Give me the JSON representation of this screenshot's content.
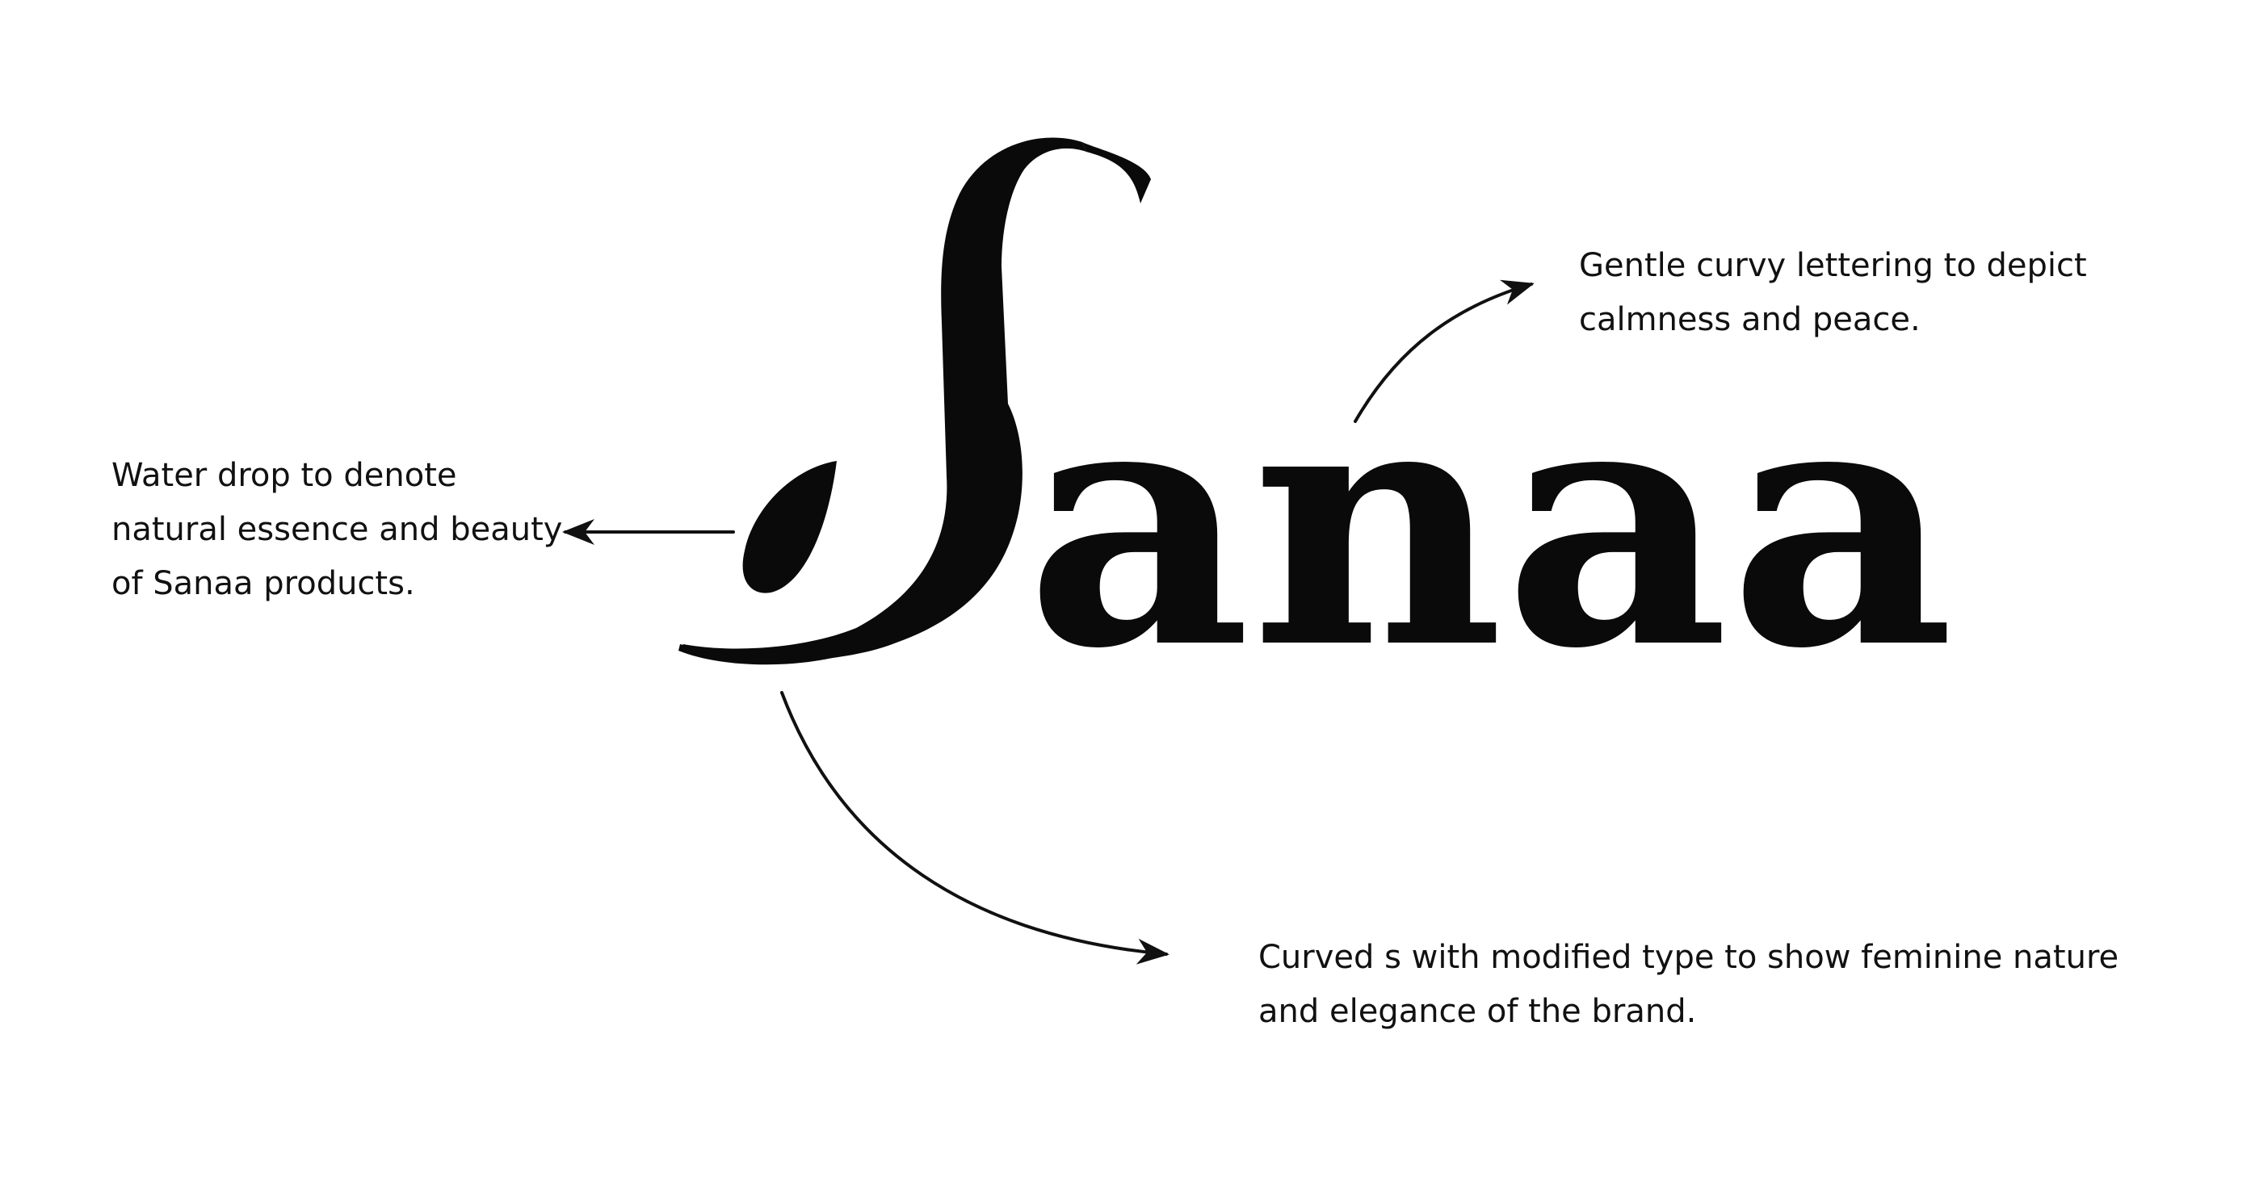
{
  "logo": {
    "wordmark_rest": "anaa",
    "lettering_note": "Sanaa"
  },
  "annotations": {
    "water_drop": "Water drop to denote natural essence and beauty of Sanaa products.",
    "lettering": "Gentle curvy lettering to depict calmness and peace.",
    "curved_s": "Curved s with modified type to show feminine nature and elegance of the brand."
  },
  "colors": {
    "ink": "#111111",
    "background": "#ffffff"
  }
}
